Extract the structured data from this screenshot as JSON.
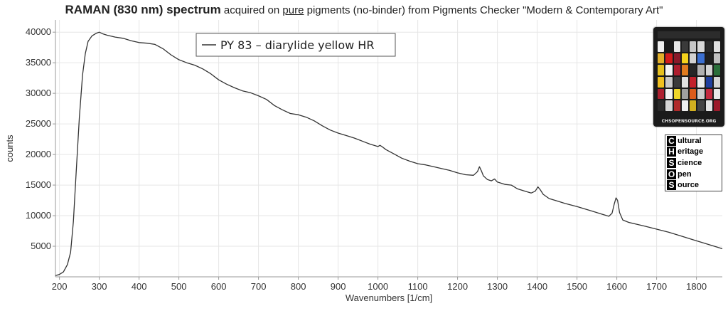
{
  "title": {
    "bold": "RAMAN (830 nm) spectrum",
    "part1": " acquired on ",
    "underlined": "pure",
    "part2": " pigments (no-binder) from Pigments Checker \"Modern & Contemporary Art\""
  },
  "chart_data": {
    "type": "line",
    "xlabel": "Wavenumbers [1/cm]",
    "ylabel": "counts",
    "xlim": [
      190,
      1865
    ],
    "ylim": [
      0,
      42000
    ],
    "x_ticks": [
      200,
      300,
      400,
      500,
      600,
      700,
      800,
      900,
      1000,
      1100,
      1200,
      1300,
      1400,
      1500,
      1600,
      1700,
      1800
    ],
    "y_ticks": [
      5000,
      10000,
      15000,
      20000,
      25000,
      30000,
      35000,
      40000
    ],
    "grid": true,
    "legend_position": "top-center",
    "series": [
      {
        "name": "PY 83 – diarylide yellow HR",
        "color": "#333333",
        "points": [
          [
            190,
            200
          ],
          [
            200,
            400
          ],
          [
            210,
            800
          ],
          [
            220,
            2000
          ],
          [
            228,
            4000
          ],
          [
            235,
            9000
          ],
          [
            242,
            17000
          ],
          [
            250,
            26000
          ],
          [
            258,
            33000
          ],
          [
            265,
            36500
          ],
          [
            272,
            38500
          ],
          [
            282,
            39400
          ],
          [
            292,
            39800
          ],
          [
            300,
            40000
          ],
          [
            310,
            39700
          ],
          [
            320,
            39500
          ],
          [
            340,
            39200
          ],
          [
            360,
            39000
          ],
          [
            380,
            38600
          ],
          [
            400,
            38300
          ],
          [
            420,
            38200
          ],
          [
            440,
            38000
          ],
          [
            460,
            37300
          ],
          [
            480,
            36300
          ],
          [
            500,
            35500
          ],
          [
            520,
            35000
          ],
          [
            540,
            34600
          ],
          [
            560,
            34000
          ],
          [
            580,
            33200
          ],
          [
            600,
            32200
          ],
          [
            620,
            31500
          ],
          [
            640,
            30900
          ],
          [
            660,
            30400
          ],
          [
            680,
            30100
          ],
          [
            700,
            29600
          ],
          [
            720,
            29000
          ],
          [
            740,
            28000
          ],
          [
            760,
            27300
          ],
          [
            780,
            26700
          ],
          [
            800,
            26500
          ],
          [
            820,
            26100
          ],
          [
            840,
            25500
          ],
          [
            860,
            24700
          ],
          [
            880,
            24000
          ],
          [
            900,
            23500
          ],
          [
            920,
            23100
          ],
          [
            940,
            22700
          ],
          [
            960,
            22200
          ],
          [
            980,
            21700
          ],
          [
            1000,
            21300
          ],
          [
            1005,
            21500
          ],
          [
            1010,
            21300
          ],
          [
            1020,
            20800
          ],
          [
            1040,
            20100
          ],
          [
            1060,
            19400
          ],
          [
            1080,
            18900
          ],
          [
            1100,
            18500
          ],
          [
            1120,
            18300
          ],
          [
            1140,
            18000
          ],
          [
            1160,
            17700
          ],
          [
            1180,
            17400
          ],
          [
            1200,
            17000
          ],
          [
            1220,
            16700
          ],
          [
            1240,
            16600
          ],
          [
            1250,
            17200
          ],
          [
            1255,
            18000
          ],
          [
            1260,
            17300
          ],
          [
            1265,
            16500
          ],
          [
            1275,
            15900
          ],
          [
            1285,
            15700
          ],
          [
            1293,
            16000
          ],
          [
            1300,
            15500
          ],
          [
            1320,
            15100
          ],
          [
            1335,
            15000
          ],
          [
            1350,
            14400
          ],
          [
            1370,
            14000
          ],
          [
            1385,
            13700
          ],
          [
            1395,
            14000
          ],
          [
            1402,
            14700
          ],
          [
            1408,
            14200
          ],
          [
            1415,
            13500
          ],
          [
            1430,
            12800
          ],
          [
            1450,
            12400
          ],
          [
            1470,
            12000
          ],
          [
            1500,
            11500
          ],
          [
            1520,
            11100
          ],
          [
            1540,
            10700
          ],
          [
            1560,
            10300
          ],
          [
            1580,
            9900
          ],
          [
            1588,
            10400
          ],
          [
            1594,
            12000
          ],
          [
            1598,
            12900
          ],
          [
            1602,
            12500
          ],
          [
            1607,
            10500
          ],
          [
            1615,
            9300
          ],
          [
            1630,
            8900
          ],
          [
            1650,
            8600
          ],
          [
            1670,
            8300
          ],
          [
            1700,
            7800
          ],
          [
            1730,
            7300
          ],
          [
            1760,
            6700
          ],
          [
            1790,
            6100
          ],
          [
            1820,
            5500
          ],
          [
            1850,
            4900
          ],
          [
            1865,
            4600
          ]
        ]
      }
    ]
  },
  "logo": {
    "checker_url": "CHSOPENSOURCE.ORG",
    "chsos_rows": [
      {
        "letter": "C",
        "text": "ultural"
      },
      {
        "letter": "H",
        "text": "eritage"
      },
      {
        "letter": "S",
        "text": "cience"
      },
      {
        "letter": "O",
        "text": "pen"
      },
      {
        "letter": "S",
        "text": "ource"
      }
    ]
  }
}
